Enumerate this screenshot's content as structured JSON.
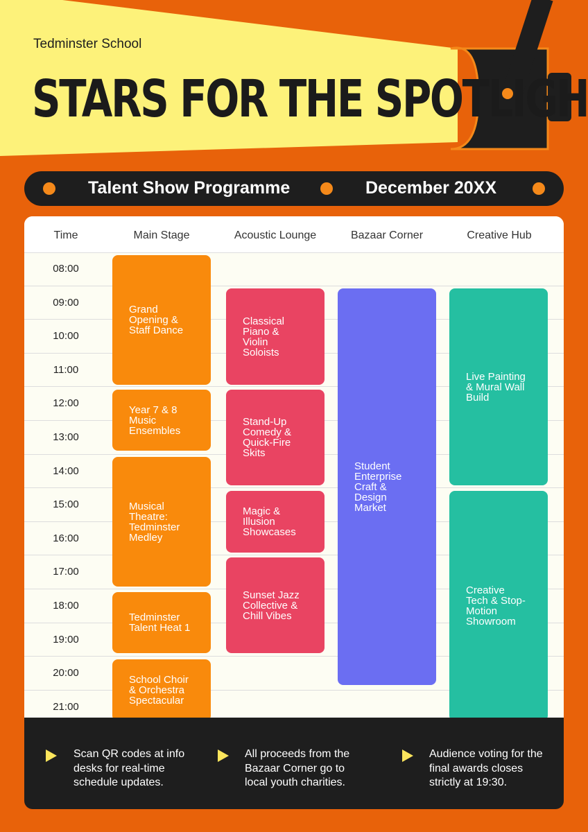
{
  "header": {
    "school": "Tedminster School",
    "title": "STARS FOR THE SPOTLIGHT"
  },
  "banner": {
    "programme": "Talent Show Programme",
    "date": "December 20XX"
  },
  "table": {
    "columns": [
      "Time",
      "Main Stage",
      "Acoustic Lounge",
      "Bazaar Corner",
      "Creative Hub"
    ],
    "times": [
      "08:00",
      "09:00",
      "10:00",
      "11:00",
      "12:00",
      "13:00",
      "14:00",
      "15:00",
      "16:00",
      "17:00",
      "18:00",
      "19:00",
      "20:00",
      "21:00"
    ],
    "main_stage": [
      "Grand Opening & Staff Dance",
      "Year 7 & 8 Music Ensembles",
      "Musical Theatre: Tedminster Medley",
      "Tedminster Talent Heat 1",
      "School Choir & Orchestra Spectacular"
    ],
    "acoustic_lounge": [
      "Classical Piano & Violin Soloists",
      "Stand-Up Comedy & Quick-Fire Skits",
      "Magic & Illusion Showcases",
      "Sunset Jazz Collective & Chill Vibes"
    ],
    "bazaar_corner": [
      "Student Enterprise Craft & Design Market"
    ],
    "creative_hub": [
      "Live Painting & Mural Wall Build",
      "Creative Tech & Stop-Motion Showroom"
    ]
  },
  "footer": {
    "notes": [
      "Scan QR codes at info desks for real-time schedule updates.",
      "All proceeds from the Bazaar Corner go to local youth charities.",
      "Audience voting for the final awards closes strictly at 19:30."
    ]
  }
}
